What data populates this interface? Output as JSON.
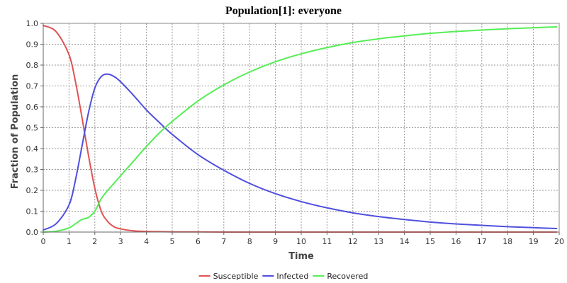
{
  "chart_data": {
    "type": "line",
    "title": "Population[1]: everyone",
    "xlabel": "Time",
    "ylabel": "Fraction of Population",
    "xlim": [
      0,
      20
    ],
    "ylim": [
      0,
      1.0
    ],
    "x_ticks": [
      0,
      1,
      2,
      3,
      4,
      5,
      6,
      7,
      8,
      9,
      10,
      11,
      12,
      13,
      14,
      15,
      16,
      17,
      18,
      19,
      20
    ],
    "y_ticks": [
      0.0,
      0.1,
      0.2,
      0.3,
      0.4,
      0.5,
      0.6,
      0.7,
      0.8,
      0.9,
      1.0
    ],
    "x_tick_labels": [
      "0",
      "1",
      "2",
      "3",
      "4",
      "5",
      "6",
      "7",
      "8",
      "9",
      "10",
      "11",
      "12",
      "13",
      "14",
      "15",
      "16",
      "17",
      "18",
      "19",
      "20"
    ],
    "y_tick_labels": [
      "0.0",
      "0.1",
      "0.2",
      "0.3",
      "0.4",
      "0.5",
      "0.6",
      "0.7",
      "0.8",
      "0.9",
      "1.0"
    ],
    "grid": true,
    "legend_position": "bottom-center",
    "x": [
      0,
      0.5,
      1,
      1.25,
      1.5,
      1.75,
      2,
      2.25,
      2.5,
      2.75,
      3,
      3.5,
      4,
      4.5,
      5,
      6,
      7,
      8,
      9,
      10,
      11,
      12,
      13,
      14,
      15,
      16,
      17,
      18,
      19,
      19.9
    ],
    "series": [
      {
        "name": "Susceptible",
        "color": "#e05252",
        "values": [
          0.99,
          0.96,
          0.85,
          0.72,
          0.55,
          0.37,
          0.21,
          0.1,
          0.05,
          0.025,
          0.015,
          0.006,
          0.003,
          0.002,
          0.001,
          0.001,
          0,
          0,
          0,
          0,
          0,
          0,
          0,
          0,
          0,
          0,
          0,
          0,
          0,
          0
        ]
      },
      {
        "name": "Infected",
        "color": "#4f4fe0",
        "values": [
          0.01,
          0.04,
          0.13,
          0.25,
          0.41,
          0.57,
          0.69,
          0.745,
          0.757,
          0.745,
          0.72,
          0.655,
          0.585,
          0.525,
          0.468,
          0.371,
          0.296,
          0.233,
          0.184,
          0.146,
          0.116,
          0.092,
          0.074,
          0.06,
          0.048,
          0.039,
          0.032,
          0.026,
          0.021,
          0.017
        ]
      },
      {
        "name": "Recovered",
        "color": "#55ee55",
        "values": [
          0.0,
          0.004,
          0.02,
          0.04,
          0.06,
          0.07,
          0.1,
          0.16,
          0.2,
          0.235,
          0.27,
          0.34,
          0.41,
          0.475,
          0.53,
          0.628,
          0.705,
          0.767,
          0.816,
          0.854,
          0.884,
          0.908,
          0.926,
          0.94,
          0.952,
          0.961,
          0.968,
          0.974,
          0.979,
          0.983
        ]
      }
    ]
  }
}
